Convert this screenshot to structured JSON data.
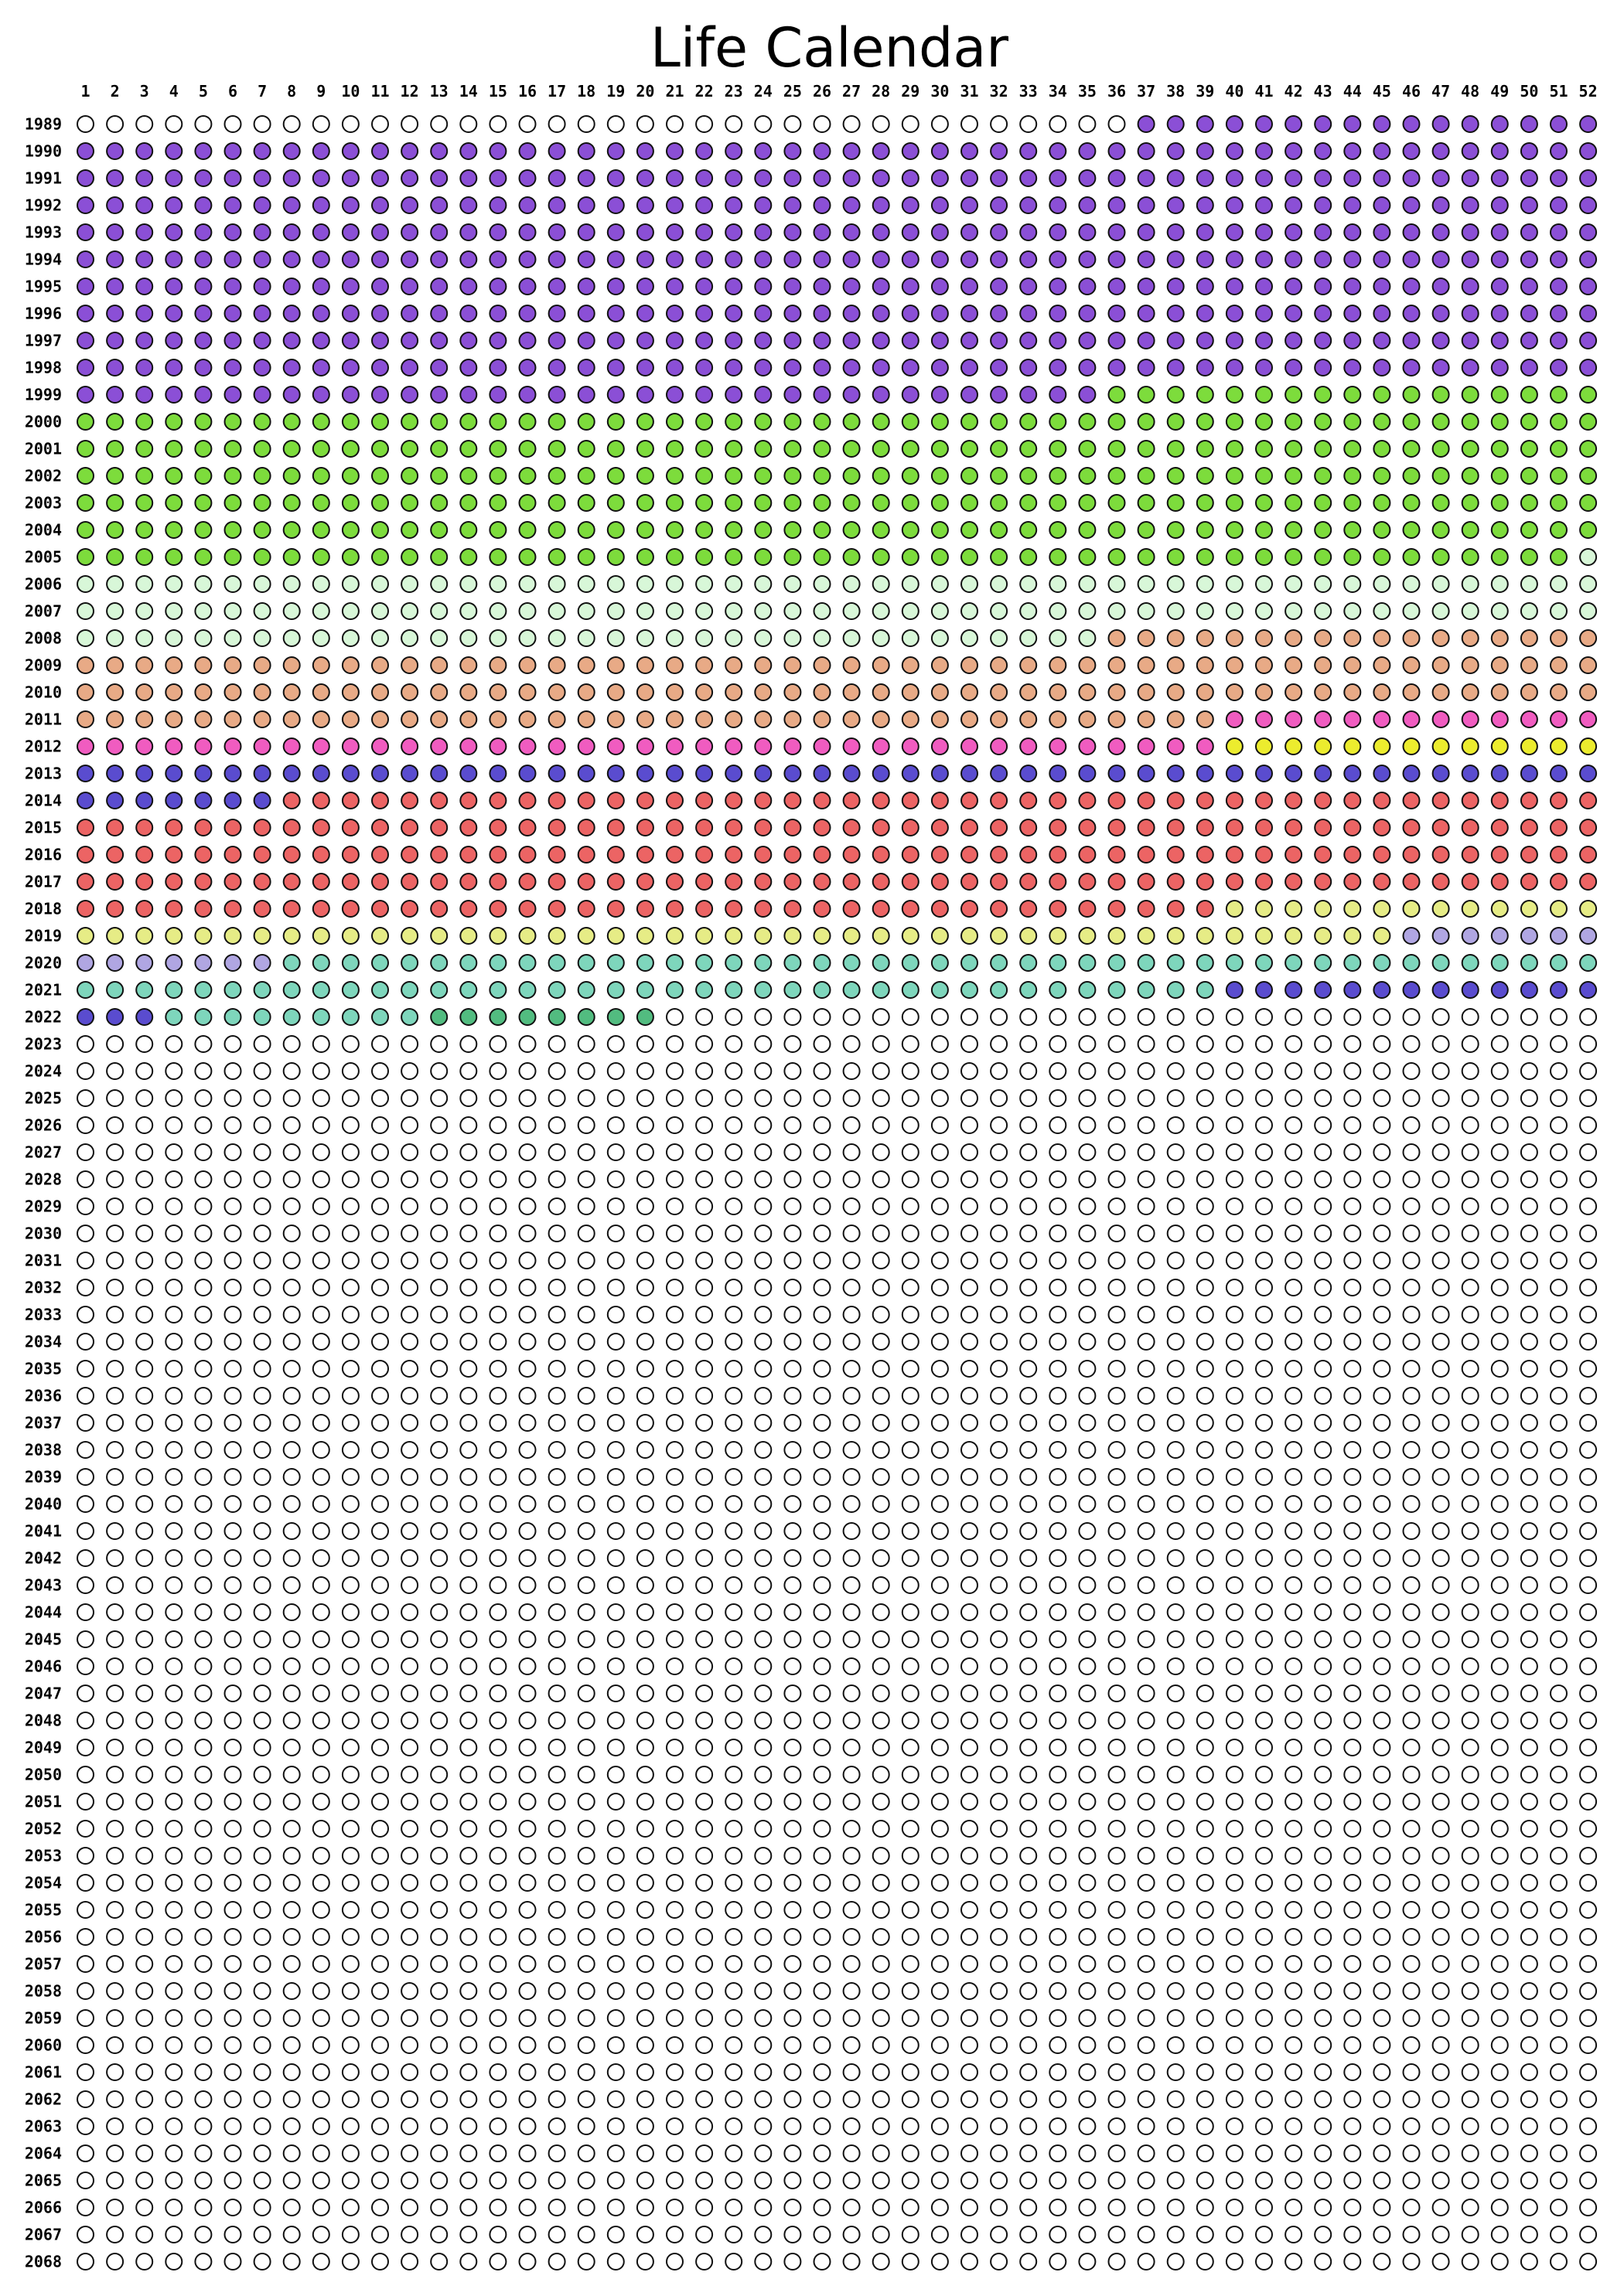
{
  "title": "Life Calendar",
  "week_labels": [
    "1",
    "2",
    "3",
    "4",
    "5",
    "6",
    "7",
    "8",
    "9",
    "10",
    "11",
    "12",
    "13",
    "14",
    "15",
    "16",
    "17",
    "18",
    "19",
    "20",
    "21",
    "22",
    "23",
    "24",
    "25",
    "26",
    "27",
    "28",
    "29",
    "30",
    "31",
    "32",
    "33",
    "34",
    "35",
    "36",
    "37",
    "38",
    "39",
    "40",
    "41",
    "42",
    "43",
    "44",
    "45",
    "46",
    "47",
    "48",
    "49",
    "50",
    "51",
    "52"
  ],
  "first_year": 1989,
  "last_year": 2068,
  "palette": {
    "empty": "#ffffff",
    "purple": "#8b4fd6",
    "lime": "#7ddc3c",
    "mint": "#d8f7d8",
    "peach": "#e8aa86",
    "pink": "#f05cc0",
    "yellow": "#ecec2e",
    "indigo": "#5a4ccf",
    "red": "#ec6464",
    "paleyellow": "#e6ec86",
    "lavender": "#b0a6e2",
    "teal": "#7ed6bc",
    "green": "#52bc80",
    "outline": "#111111"
  },
  "segments": [
    {
      "from_year": 1989,
      "from_week": 37,
      "to_year": 1999,
      "to_week": 35,
      "color": "purple"
    },
    {
      "from_year": 1999,
      "from_week": 36,
      "to_year": 2005,
      "to_week": 51,
      "color": "lime"
    },
    {
      "from_year": 2005,
      "from_week": 52,
      "to_year": 2008,
      "to_week": 35,
      "color": "mint"
    },
    {
      "from_year": 2008,
      "from_week": 36,
      "to_year": 2011,
      "to_week": 39,
      "color": "peach"
    },
    {
      "from_year": 2011,
      "from_week": 40,
      "to_year": 2012,
      "to_week": 39,
      "color": "pink"
    },
    {
      "from_year": 2012,
      "from_week": 40,
      "to_year": 2012,
      "to_week": 52,
      "color": "yellow"
    },
    {
      "from_year": 2013,
      "from_week": 1,
      "to_year": 2014,
      "to_week": 7,
      "color": "indigo"
    },
    {
      "from_year": 2014,
      "from_week": 8,
      "to_year": 2018,
      "to_week": 39,
      "color": "red"
    },
    {
      "from_year": 2018,
      "from_week": 40,
      "to_year": 2019,
      "to_week": 45,
      "color": "paleyellow"
    },
    {
      "from_year": 2019,
      "from_week": 46,
      "to_year": 2020,
      "to_week": 7,
      "color": "lavender"
    },
    {
      "from_year": 2020,
      "from_week": 8,
      "to_year": 2021,
      "to_week": 39,
      "color": "teal"
    },
    {
      "from_year": 2021,
      "from_week": 40,
      "to_year": 2022,
      "to_week": 3,
      "color": "indigo"
    },
    {
      "from_year": 2022,
      "from_week": 4,
      "to_year": 2022,
      "to_week": 12,
      "color": "teal"
    },
    {
      "from_year": 2022,
      "from_week": 13,
      "to_year": 2022,
      "to_week": 20,
      "color": "green"
    }
  ]
}
